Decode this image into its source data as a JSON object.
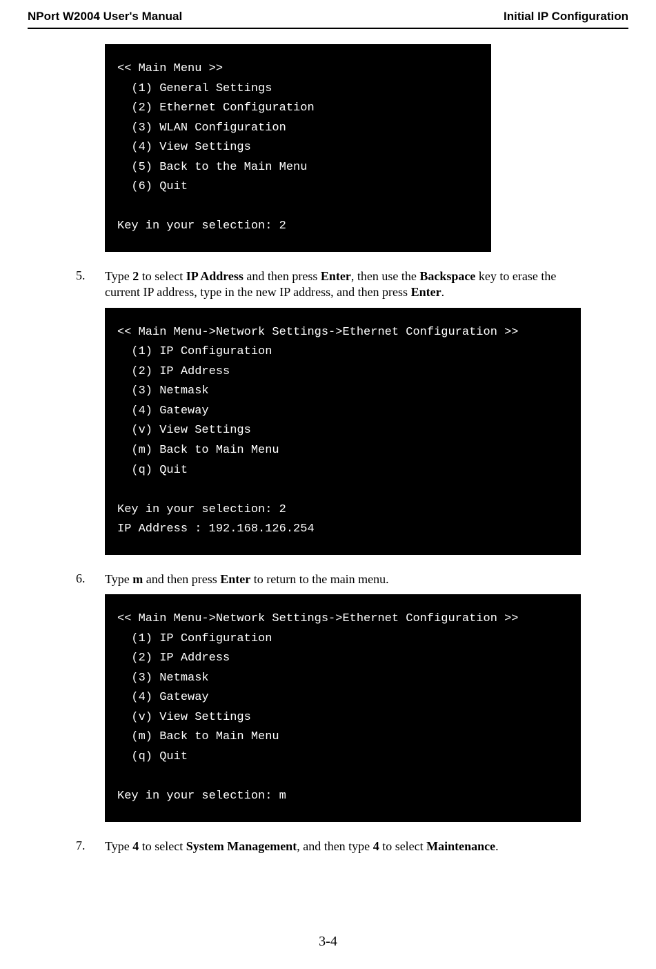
{
  "header": {
    "left": "NPort W2004 User's Manual",
    "right": "Initial IP Configuration"
  },
  "terminal1": {
    "l1": "<< Main Menu >>",
    "l2": "  (1) General Settings",
    "l3": "  (2) Ethernet Configuration",
    "l4": "  (3) WLAN Configuration",
    "l5": "  (4) View Settings",
    "l6": "  (5) Back to the Main Menu",
    "l7": "  (6) Quit",
    "l8": "",
    "l9": "Key in your selection: 2"
  },
  "step5": {
    "num": "5.",
    "t1": "Type ",
    "b1": "2",
    "t2": " to select ",
    "b2": "IP Address",
    "t3": " and then press ",
    "b3": "Enter",
    "t4": ", then use the ",
    "b4": "Backspace",
    "t5": " key to erase the current IP address, type in the new IP address, and then press ",
    "b5": "Enter",
    "t6": "."
  },
  "terminal2": {
    "l1": "<< Main Menu->Network Settings->Ethernet Configuration >>",
    "l2": "  (1) IP Configuration",
    "l3": "  (2) IP Address",
    "l4": "  (3) Netmask",
    "l5": "  (4) Gateway",
    "l6": "  (v) View Settings",
    "l7": "  (m) Back to Main Menu",
    "l8": "  (q) Quit",
    "l9": "",
    "l10": "Key in your selection: 2",
    "l11": "IP Address : 192.168.126.254"
  },
  "step6": {
    "num": "6.",
    "t1": "Type ",
    "b1": "m",
    "t2": " and then press ",
    "b2": "Enter",
    "t3": " to return to the main menu."
  },
  "terminal3": {
    "l1": "<< Main Menu->Network Settings->Ethernet Configuration >>",
    "l2": "  (1) IP Configuration",
    "l3": "  (2) IP Address",
    "l4": "  (3) Netmask",
    "l5": "  (4) Gateway",
    "l6": "  (v) View Settings",
    "l7": "  (m) Back to Main Menu",
    "l8": "  (q) Quit",
    "l9": "",
    "l10": "Key in your selection: m"
  },
  "step7": {
    "num": "7.",
    "t1": "Type ",
    "b1": "4",
    "t2": " to select ",
    "b2": "System Management",
    "t3": ", and then type ",
    "b3": "4",
    "t4": " to select ",
    "b4": "Maintenance",
    "t5": "."
  },
  "footer": {
    "page": "3-4"
  }
}
